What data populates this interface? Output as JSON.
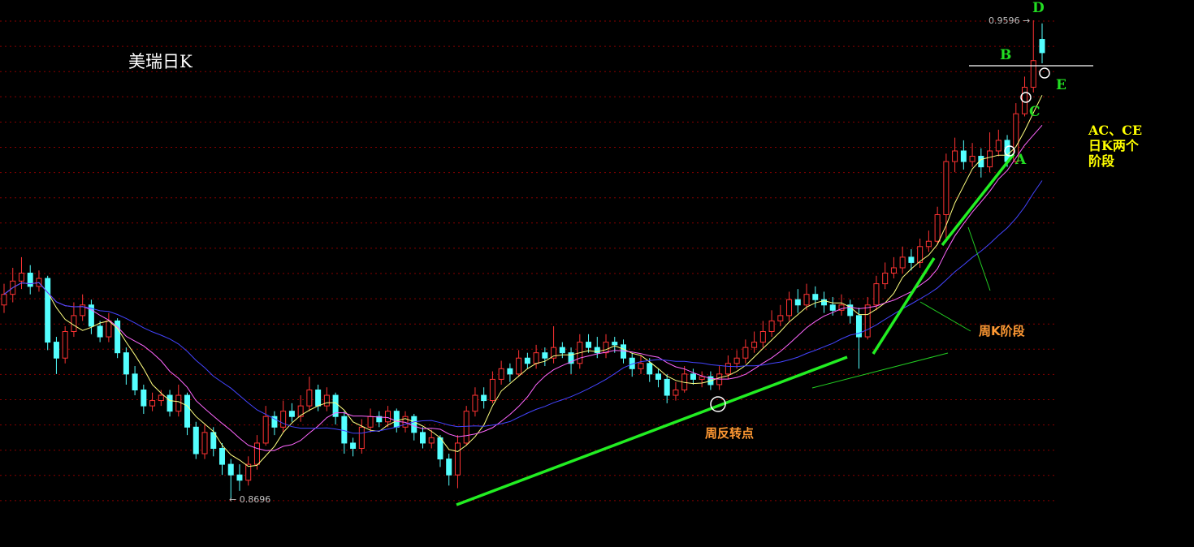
{
  "chart_data": {
    "type": "candlestick",
    "title": "美瑞日K",
    "colors": {
      "up": "#ff3333",
      "down": "#54ffff",
      "grid": "#880000",
      "ma": [
        "#ffff80",
        "#ff66ff",
        "#4444ff"
      ]
    },
    "grid": true,
    "ylim": [
      0.8696,
      0.9596
    ],
    "ma_periods": [
      5,
      10,
      20
    ],
    "price_marks": {
      "high": "0.9596",
      "low": "0.8696"
    },
    "candles_ohlc": [
      [
        0.906,
        0.91,
        0.9045,
        0.908
      ],
      [
        0.908,
        0.913,
        0.9065,
        0.9105
      ],
      [
        0.9105,
        0.915,
        0.909,
        0.912
      ],
      [
        0.912,
        0.9135,
        0.908,
        0.9095
      ],
      [
        0.9095,
        0.9125,
        0.9085,
        0.911
      ],
      [
        0.911,
        0.9115,
        0.8975,
        0.899
      ],
      [
        0.899,
        0.9,
        0.893,
        0.896
      ],
      [
        0.896,
        0.902,
        0.895,
        0.901
      ],
      [
        0.901,
        0.9065,
        0.9,
        0.904
      ],
      [
        0.904,
        0.908,
        0.903,
        0.906
      ],
      [
        0.906,
        0.907,
        0.9005,
        0.902
      ],
      [
        0.902,
        0.903,
        0.899,
        0.9
      ],
      [
        0.9,
        0.9045,
        0.899,
        0.903
      ],
      [
        0.903,
        0.9035,
        0.896,
        0.897
      ],
      [
        0.897,
        0.898,
        0.891,
        0.893
      ],
      [
        0.893,
        0.8945,
        0.889,
        0.89
      ],
      [
        0.89,
        0.891,
        0.8855,
        0.887
      ],
      [
        0.887,
        0.8895,
        0.886,
        0.888
      ],
      [
        0.888,
        0.89,
        0.887,
        0.889
      ],
      [
        0.889,
        0.89,
        0.885,
        0.886
      ],
      [
        0.886,
        0.891,
        0.885,
        0.889
      ],
      [
        0.889,
        0.8895,
        0.8815,
        0.883
      ],
      [
        0.883,
        0.884,
        0.877,
        0.878
      ],
      [
        0.878,
        0.8835,
        0.877,
        0.882
      ],
      [
        0.882,
        0.883,
        0.8775,
        0.879
      ],
      [
        0.879,
        0.88,
        0.874,
        0.876
      ],
      [
        0.876,
        0.877,
        0.8696,
        0.874
      ],
      [
        0.874,
        0.876,
        0.871,
        0.873
      ],
      [
        0.873,
        0.8775,
        0.872,
        0.876
      ],
      [
        0.876,
        0.8815,
        0.875,
        0.88
      ],
      [
        0.88,
        0.887,
        0.8795,
        0.885
      ],
      [
        0.885,
        0.886,
        0.8815,
        0.883
      ],
      [
        0.883,
        0.888,
        0.882,
        0.886
      ],
      [
        0.886,
        0.8875,
        0.884,
        0.885
      ],
      [
        0.885,
        0.889,
        0.884,
        0.887
      ],
      [
        0.887,
        0.8925,
        0.886,
        0.89
      ],
      [
        0.89,
        0.891,
        0.886,
        0.887
      ],
      [
        0.887,
        0.8905,
        0.886,
        0.889
      ],
      [
        0.889,
        0.8895,
        0.8835,
        0.885
      ],
      [
        0.885,
        0.886,
        0.878,
        0.88
      ],
      [
        0.88,
        0.881,
        0.8775,
        0.879
      ],
      [
        0.879,
        0.8845,
        0.878,
        0.883
      ],
      [
        0.883,
        0.8865,
        0.882,
        0.885
      ],
      [
        0.885,
        0.886,
        0.883,
        0.884
      ],
      [
        0.884,
        0.887,
        0.883,
        0.886
      ],
      [
        0.886,
        0.8865,
        0.882,
        0.883
      ],
      [
        0.883,
        0.886,
        0.882,
        0.885
      ],
      [
        0.885,
        0.8855,
        0.8805,
        0.882
      ],
      [
        0.882,
        0.883,
        0.879,
        0.88
      ],
      [
        0.88,
        0.8825,
        0.879,
        0.881
      ],
      [
        0.881,
        0.8815,
        0.8755,
        0.877
      ],
      [
        0.877,
        0.878,
        0.872,
        0.874
      ],
      [
        0.874,
        0.8815,
        0.8715,
        0.88
      ],
      [
        0.88,
        0.887,
        0.8795,
        0.886
      ],
      [
        0.886,
        0.8905,
        0.885,
        0.889
      ],
      [
        0.889,
        0.8905,
        0.8865,
        0.888
      ],
      [
        0.888,
        0.8935,
        0.8875,
        0.892
      ],
      [
        0.892,
        0.8955,
        0.891,
        0.894
      ],
      [
        0.894,
        0.895,
        0.8915,
        0.893
      ],
      [
        0.893,
        0.8975,
        0.8925,
        0.896
      ],
      [
        0.896,
        0.897,
        0.894,
        0.895
      ],
      [
        0.895,
        0.8985,
        0.894,
        0.897
      ],
      [
        0.897,
        0.898,
        0.8945,
        0.896
      ],
      [
        0.896,
        0.902,
        0.895,
        0.898
      ],
      [
        0.898,
        0.899,
        0.896,
        0.897
      ],
      [
        0.897,
        0.898,
        0.893,
        0.895
      ],
      [
        0.895,
        0.9005,
        0.894,
        0.899
      ],
      [
        0.899,
        0.9005,
        0.897,
        0.898
      ],
      [
        0.898,
        0.9,
        0.896,
        0.897
      ],
      [
        0.897,
        0.9005,
        0.896,
        0.899
      ],
      [
        0.899,
        0.9,
        0.897,
        0.8985
      ],
      [
        0.8985,
        0.8995,
        0.895,
        0.896
      ],
      [
        0.896,
        0.897,
        0.8925,
        0.894
      ],
      [
        0.894,
        0.8965,
        0.893,
        0.895
      ],
      [
        0.895,
        0.896,
        0.8915,
        0.893
      ],
      [
        0.893,
        0.894,
        0.8905,
        0.892
      ],
      [
        0.892,
        0.893,
        0.8875,
        0.889
      ],
      [
        0.889,
        0.8915,
        0.888,
        0.89
      ],
      [
        0.89,
        0.8945,
        0.8895,
        0.893
      ],
      [
        0.893,
        0.894,
        0.891,
        0.892
      ],
      [
        0.892,
        0.8935,
        0.8905,
        0.8925
      ],
      [
        0.8925,
        0.8935,
        0.89,
        0.891
      ],
      [
        0.891,
        0.8945,
        0.89,
        0.893
      ],
      [
        0.893,
        0.8965,
        0.892,
        0.895
      ],
      [
        0.895,
        0.8975,
        0.894,
        0.896
      ],
      [
        0.896,
        0.8995,
        0.895,
        0.898
      ],
      [
        0.898,
        0.901,
        0.897,
        0.899
      ],
      [
        0.899,
        0.903,
        0.898,
        0.901
      ],
      [
        0.901,
        0.905,
        0.9,
        0.903
      ],
      [
        0.903,
        0.906,
        0.902,
        0.904
      ],
      [
        0.904,
        0.9085,
        0.903,
        0.907
      ],
      [
        0.907,
        0.909,
        0.9045,
        0.906
      ],
      [
        0.906,
        0.91,
        0.905,
        0.908
      ],
      [
        0.908,
        0.9095,
        0.9055,
        0.907
      ],
      [
        0.907,
        0.9085,
        0.9045,
        0.906
      ],
      [
        0.906,
        0.9075,
        0.904,
        0.905
      ],
      [
        0.905,
        0.908,
        0.904,
        0.906
      ],
      [
        0.906,
        0.907,
        0.9025,
        0.904
      ],
      [
        0.904,
        0.9055,
        0.894,
        0.9
      ],
      [
        0.9,
        0.9075,
        0.8995,
        0.906
      ],
      [
        0.906,
        0.9115,
        0.905,
        0.91
      ],
      [
        0.91,
        0.914,
        0.909,
        0.912
      ],
      [
        0.912,
        0.915,
        0.911,
        0.913
      ],
      [
        0.913,
        0.917,
        0.912,
        0.915
      ],
      [
        0.915,
        0.9165,
        0.9125,
        0.914
      ],
      [
        0.914,
        0.9185,
        0.913,
        0.917
      ],
      [
        0.917,
        0.92,
        0.916,
        0.918
      ],
      [
        0.918,
        0.9245,
        0.9175,
        0.923
      ],
      [
        0.923,
        0.9345,
        0.918,
        0.933
      ],
      [
        0.933,
        0.9375,
        0.931,
        0.935
      ],
      [
        0.935,
        0.937,
        0.9315,
        0.933
      ],
      [
        0.933,
        0.9365,
        0.932,
        0.934
      ],
      [
        0.934,
        0.9355,
        0.93,
        0.932
      ],
      [
        0.932,
        0.9385,
        0.931,
        0.935
      ],
      [
        0.935,
        0.939,
        0.934,
        0.937
      ],
      [
        0.937,
        0.938,
        0.932,
        0.933
      ],
      [
        0.933,
        0.944,
        0.9325,
        0.942
      ],
      [
        0.942,
        0.949,
        0.9415,
        0.947
      ],
      [
        0.947,
        0.9596,
        0.946,
        0.952
      ],
      [
        0.956,
        0.959,
        0.9515,
        0.9535
      ]
    ],
    "annotations": {
      "point_d": "D",
      "point_b": "B",
      "point_e": "E",
      "point_c": "C",
      "point_a": "A",
      "daily_stages": [
        "AC、CE",
        "日K两个",
        "阶段"
      ],
      "weekly_stage": "周K阶段",
      "weekly_reversal": "周反转点"
    }
  }
}
